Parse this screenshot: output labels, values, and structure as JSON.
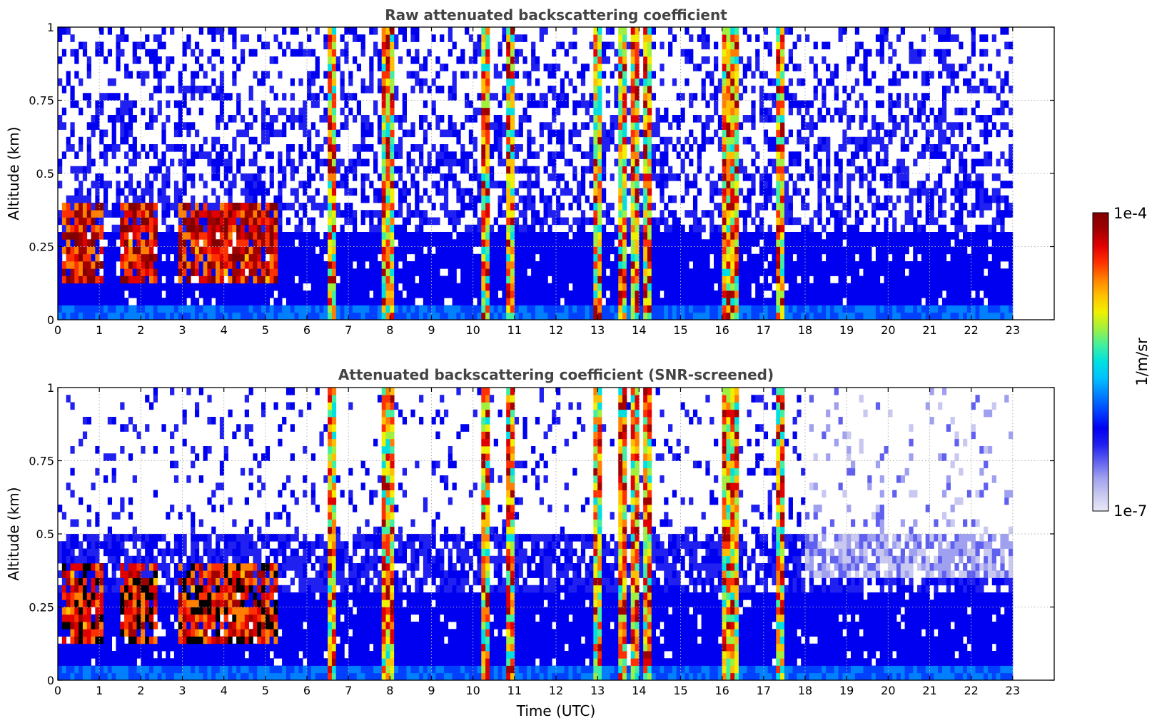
{
  "chart_data": [
    {
      "type": "heatmap",
      "title": "Raw attenuated backscattering coefficient",
      "xlabel": "",
      "ylabel": "Altitude (km)",
      "xlim": [
        0,
        24
      ],
      "ylim": [
        0,
        1
      ],
      "x_ticks": [
        "0",
        "1",
        "2",
        "3",
        "4",
        "5",
        "6",
        "7",
        "8",
        "9",
        "10",
        "11",
        "12",
        "13",
        "14",
        "15",
        "16",
        "17",
        "18",
        "19",
        "20",
        "21",
        "22",
        "23"
      ],
      "y_ticks": [
        "0",
        "0.25",
        "0.5",
        "0.75",
        "1"
      ],
      "data_end_time": 23,
      "grid": true,
      "colormap": "jet",
      "low_cloud_periods_utc": [
        [
          0.1,
          1.1
        ],
        [
          1.5,
          2.4
        ],
        [
          2.9,
          5.3
        ]
      ],
      "strong_columns_utc": [
        6.6,
        7.9,
        8.0,
        10.3,
        10.9,
        13.0,
        13.6,
        13.9,
        14.2,
        16.1,
        16.3,
        17.4
      ]
    },
    {
      "type": "heatmap",
      "title": "Attenuated backscattering coefficient (SNR-screened)",
      "xlabel": "Time (UTC)",
      "ylabel": "Altitude (km)",
      "xlim": [
        0,
        24
      ],
      "ylim": [
        0,
        1
      ],
      "x_ticks": [
        "0",
        "1",
        "2",
        "3",
        "4",
        "5",
        "6",
        "7",
        "8",
        "9",
        "10",
        "11",
        "12",
        "13",
        "14",
        "15",
        "16",
        "17",
        "18",
        "19",
        "20",
        "21",
        "22",
        "23"
      ],
      "y_ticks": [
        "0",
        "0.25",
        "0.5",
        "0.75",
        "1"
      ],
      "data_end_time": 23,
      "grid": true,
      "colormap": "jet",
      "low_cloud_periods_utc": [
        [
          0.1,
          1.1
        ],
        [
          1.5,
          2.4
        ],
        [
          2.9,
          5.3
        ]
      ],
      "strong_columns_utc": [
        6.6,
        7.9,
        8.0,
        10.3,
        10.9,
        13.0,
        13.6,
        13.9,
        14.2,
        16.1,
        16.3,
        17.4
      ]
    }
  ],
  "colorbar": {
    "label": "1/m/sr",
    "max_label": "1e-4",
    "min_label": "1e-7",
    "colors": [
      "#e8e8f8",
      "#c8c8f0",
      "#a0a0f0",
      "#6060f0",
      "#2020f0",
      "#0000f0",
      "#0040ff",
      "#0080ff",
      "#00c0ff",
      "#00e0e0",
      "#40f0a0",
      "#a0f040",
      "#f0f000",
      "#ffc000",
      "#ff8000",
      "#ff3000",
      "#e00000",
      "#a00000",
      "#800000"
    ]
  }
}
